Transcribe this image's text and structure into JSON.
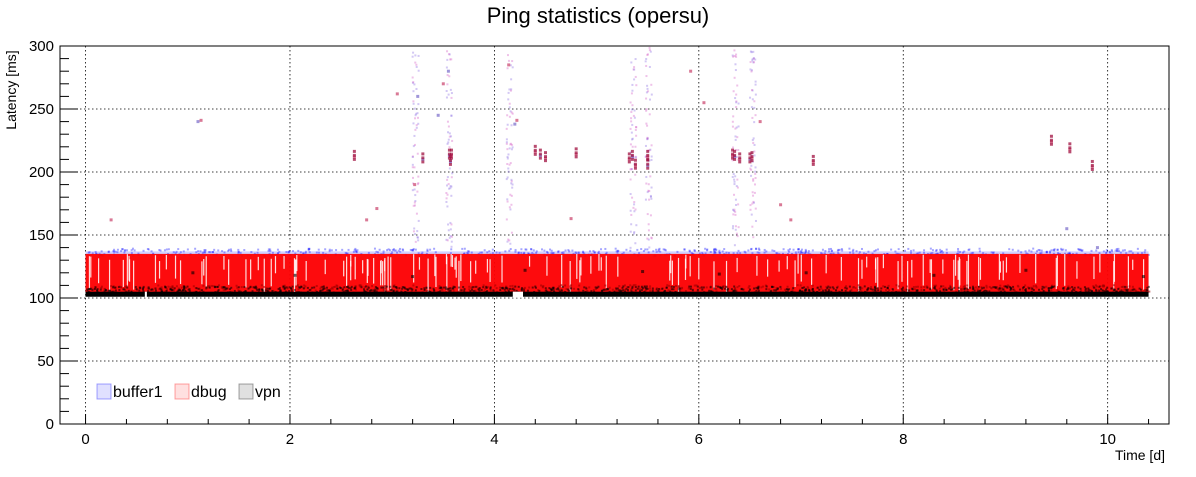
{
  "chart_data": {
    "type": "scatter",
    "title": "Ping statistics (opersu)",
    "xlabel": "Time [d]",
    "ylabel": "Latency [ms]",
    "xlim": [
      -0.25,
      10.6
    ],
    "ylim": [
      0,
      300
    ],
    "x_ticks": [
      0,
      2,
      4,
      6,
      8,
      10
    ],
    "x_tick_labels": [
      "0",
      "2",
      "4",
      "6",
      "8",
      "10"
    ],
    "y_ticks": [
      0,
      50,
      100,
      150,
      200,
      250,
      300
    ],
    "y_tick_labels": [
      "0",
      "50",
      "100",
      "150",
      "200",
      "250",
      "300"
    ],
    "grid": true,
    "legend_position": "bottom-left",
    "series": [
      {
        "name": "buffer1",
        "color": "#0000ff",
        "band": {
          "x_range": [
            0,
            10.4
          ],
          "y_range": [
            104,
            137
          ]
        },
        "scatter": [
          [
            3.25,
            260
          ],
          [
            3.3,
            210
          ],
          [
            3.45,
            245
          ],
          [
            3.55,
            280
          ],
          [
            3.56,
            213
          ],
          [
            3.57,
            208
          ],
          [
            4.2,
            238
          ],
          [
            4.45,
            213
          ],
          [
            5.35,
            212
          ],
          [
            5.5,
            205
          ],
          [
            6.35,
            212
          ],
          [
            6.5,
            210
          ],
          [
            9.9,
            140
          ],
          [
            1.1,
            240
          ],
          [
            9.6,
            155
          ]
        ]
      },
      {
        "name": "dbug",
        "color": "#ff0000",
        "band": {
          "x_range": [
            0,
            10.4
          ],
          "y_range": [
            104,
            135
          ]
        },
        "scatter": [
          [
            0.25,
            162
          ],
          [
            1.13,
            241
          ],
          [
            2.63,
            212
          ],
          [
            2.75,
            162
          ],
          [
            2.85,
            171
          ],
          [
            3.05,
            262
          ],
          [
            3.22,
            190
          ],
          [
            3.5,
            270
          ],
          [
            3.58,
            213
          ],
          [
            4.14,
            285
          ],
          [
            4.22,
            241
          ],
          [
            4.4,
            216
          ],
          [
            4.5,
            211
          ],
          [
            4.75,
            163
          ],
          [
            4.8,
            214
          ],
          [
            5.32,
            210
          ],
          [
            5.38,
            205
          ],
          [
            5.5,
            212
          ],
          [
            5.92,
            280
          ],
          [
            6.05,
            255
          ],
          [
            6.33,
            213
          ],
          [
            6.4,
            210
          ],
          [
            6.52,
            211
          ],
          [
            6.6,
            240
          ],
          [
            6.8,
            174
          ],
          [
            6.9,
            162
          ],
          [
            7.12,
            208
          ],
          [
            9.45,
            224
          ],
          [
            9.63,
            218
          ],
          [
            9.85,
            204
          ]
        ]
      },
      {
        "name": "vpn",
        "color": "#000000",
        "band": {
          "x_range": [
            0,
            10.4
          ],
          "y_range": [
            101,
            109
          ]
        },
        "scatter": [
          [
            1.05,
            120
          ],
          [
            2.05,
            118
          ],
          [
            3.2,
            117
          ],
          [
            4.3,
            122
          ],
          [
            5.45,
            121
          ],
          [
            6.2,
            119
          ],
          [
            7.05,
            120
          ],
          [
            8.3,
            118
          ],
          [
            9.2,
            122
          ],
          [
            10.35,
            117
          ]
        ]
      }
    ]
  }
}
